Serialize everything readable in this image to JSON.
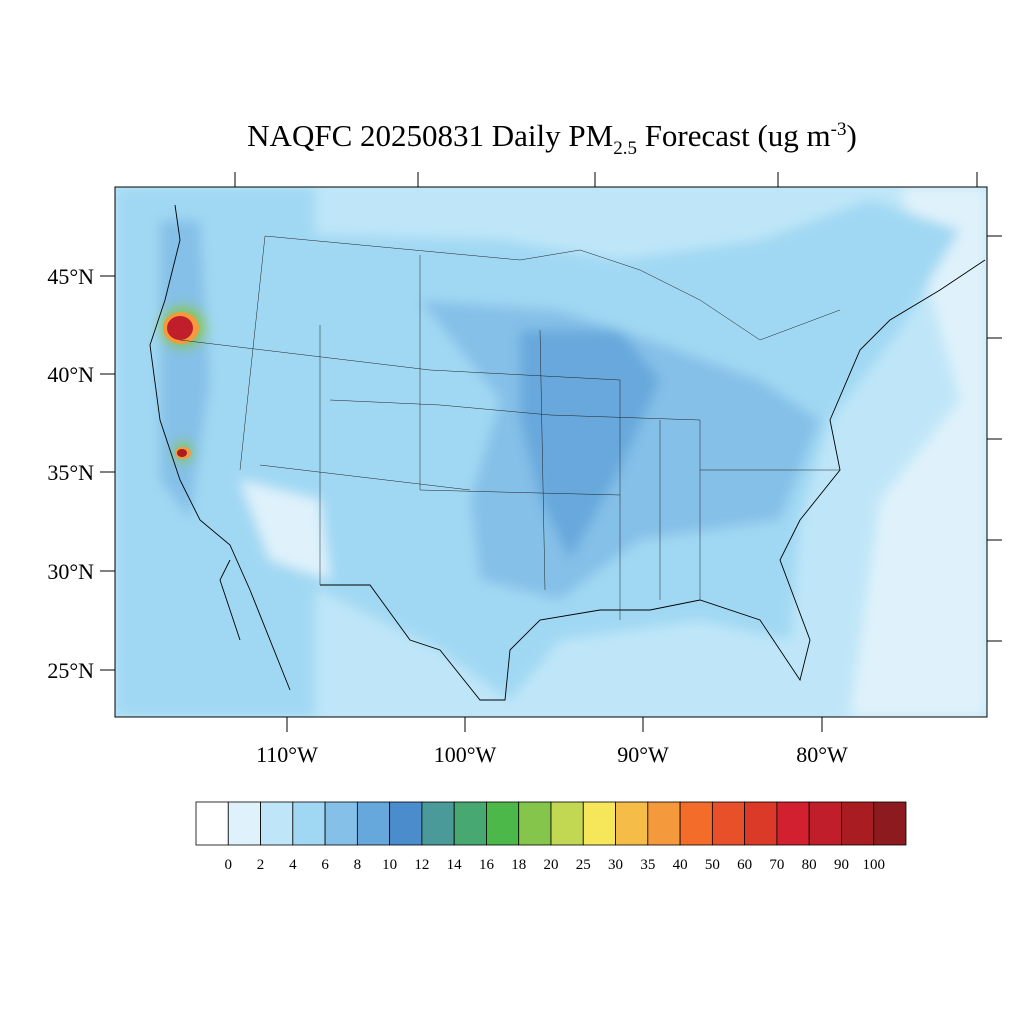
{
  "header": {
    "title_main": "NAQFC 20250831 Daily PM",
    "title_sub": "2.5",
    "title_rest": " Forecast (ug m",
    "title_sup": "-3",
    "title_end": ")"
  },
  "lat_labels": [
    "45°N",
    "40°N",
    "35°N",
    "30°N",
    "25°N"
  ],
  "lon_labels": [
    "110°W",
    "100°W",
    "90°W",
    "80°W"
  ],
  "colorbar": {
    "labels": [
      0,
      2,
      4,
      6,
      8,
      10,
      12,
      14,
      16,
      18,
      20,
      25,
      30,
      35,
      40,
      50,
      60,
      70,
      80,
      90,
      100
    ],
    "colors": [
      "#ffffff",
      "#dff2fb",
      "#bfe6f8",
      "#a0d8f3",
      "#85c0e8",
      "#67a8dc",
      "#4a8ccc",
      "#4a9a9a",
      "#48a872",
      "#4cb84a",
      "#86c54c",
      "#c2d752",
      "#f6e65a",
      "#f6bc48",
      "#f59a3c",
      "#f36c2a",
      "#e8502a",
      "#dc3a28",
      "#d32030",
      "#bf1e2a",
      "#a81c22",
      "#8c1a1e"
    ]
  }
}
